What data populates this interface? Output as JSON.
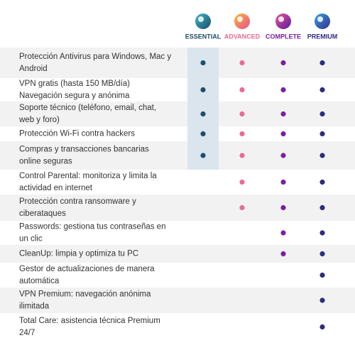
{
  "plans": [
    {
      "name": "ESSENTIAL",
      "color": "#1d4e6b"
    },
    {
      "name": "ADVANCED",
      "color": "#ec6a92"
    },
    {
      "name": "COMPLETE",
      "color": "#7a1fa2"
    },
    {
      "name": "PREMIUM",
      "color": "#2e2a80"
    }
  ],
  "rows": [
    {
      "lines": [
        "Protección Antivirus para Windows, Mac y",
        "Android"
      ],
      "included": [
        true,
        true,
        true,
        true
      ]
    },
    {
      "lines": [
        "VPN gratis (hasta 150 MB/día)",
        "Navegación segura y anónima"
      ],
      "included": [
        true,
        true,
        true,
        true
      ]
    },
    {
      "lines": [
        "Soporte técnico (teléfono, email, chat,",
        "web y foro)"
      ],
      "included": [
        true,
        true,
        true,
        true
      ]
    },
    {
      "lines": [
        "Protección Wi-Fi contra hackers"
      ],
      "included": [
        true,
        true,
        true,
        true
      ]
    },
    {
      "lines": [
        "Compras y transacciones bancarias",
        "online seguras"
      ],
      "included": [
        true,
        true,
        true,
        true
      ]
    },
    {
      "lines": [
        "Control Parental: monitoriza y limita la",
        "actividad en internet"
      ],
      "included": [
        false,
        true,
        true,
        true
      ]
    },
    {
      "lines": [
        "Protección contra ransomware y",
        "ciberataques"
      ],
      "included": [
        false,
        true,
        true,
        true
      ]
    },
    {
      "lines": [
        "Passwords: gestiona tus contraseñas en",
        "un clic"
      ],
      "included": [
        false,
        false,
        true,
        true
      ]
    },
    {
      "lines": [
        "CleanUp: limpia y optimiza tu PC"
      ],
      "included": [
        false,
        false,
        true,
        true
      ]
    },
    {
      "lines": [
        "Gestor de actualizaciones de manera",
        "automática"
      ],
      "included": [
        false,
        false,
        false,
        true
      ]
    },
    {
      "lines": [
        "VPN Premium: navegación anónima",
        "ilimitada"
      ],
      "included": [
        false,
        false,
        false,
        true
      ]
    },
    {
      "lines": [
        "Total Care: asistencia técnica Premium",
        "24/7"
      ],
      "included": [
        false,
        false,
        false,
        true
      ]
    }
  ]
}
